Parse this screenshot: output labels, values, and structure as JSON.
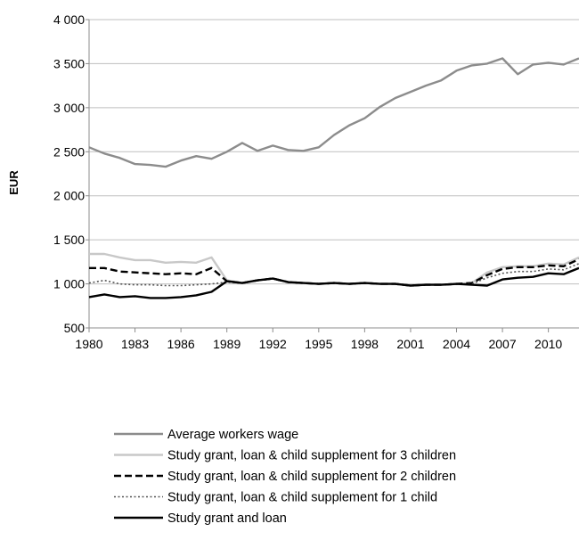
{
  "chart_data": {
    "type": "line",
    "title": "",
    "xlabel": "",
    "ylabel": "EUR",
    "xlim": [
      1980,
      2012
    ],
    "ylim": [
      500,
      4000
    ],
    "x_ticks": [
      "1980",
      "1983",
      "1986",
      "1989",
      "1992",
      "1995",
      "1998",
      "2001",
      "2004",
      "2007",
      "2010"
    ],
    "y_ticks": [
      "500",
      "1 000",
      "1 500",
      "2 000",
      "2 500",
      "3 000",
      "3 500",
      "4 000"
    ],
    "grid": "horizontal",
    "legend_position": "bottom",
    "x": [
      1980,
      1981,
      1982,
      1983,
      1984,
      1985,
      1986,
      1987,
      1988,
      1989,
      1990,
      1991,
      1992,
      1993,
      1994,
      1995,
      1996,
      1997,
      1998,
      1999,
      2000,
      2001,
      2002,
      2003,
      2004,
      2005,
      2006,
      2007,
      2008,
      2009,
      2010,
      2011,
      2012
    ],
    "series": [
      {
        "name": "Average workers wage",
        "color": "#8c8c8c",
        "style": "solid",
        "values": [
          2550,
          2480,
          2430,
          2360,
          2350,
          2330,
          2400,
          2450,
          2420,
          2500,
          2600,
          2510,
          2570,
          2520,
          2510,
          2550,
          2690,
          2800,
          2880,
          3010,
          3110,
          3180,
          3250,
          3310,
          3420,
          3480,
          3500,
          3560,
          3380,
          3490,
          3510,
          3490,
          3560
        ]
      },
      {
        "name": "Study grant, loan & child supplement for 3 children",
        "color": "#c8c8c8",
        "style": "solid",
        "values": [
          1340,
          1340,
          1300,
          1270,
          1270,
          1240,
          1250,
          1240,
          1300,
          1040,
          1010,
          1040,
          1060,
          1020,
          1010,
          1000,
          1010,
          1000,
          1010,
          1000,
          1000,
          980,
          990,
          990,
          1000,
          1010,
          1130,
          1190,
          1200,
          1200,
          1230,
          1220,
          1300
        ]
      },
      {
        "name": "Study grant, loan & child supplement for 2 children",
        "color": "#000000",
        "style": "dashed",
        "values": [
          1180,
          1180,
          1140,
          1130,
          1120,
          1110,
          1120,
          1110,
          1180,
          1030,
          1010,
          1040,
          1060,
          1020,
          1010,
          1000,
          1010,
          1000,
          1010,
          1000,
          1000,
          980,
          990,
          990,
          1000,
          1010,
          1100,
          1170,
          1190,
          1190,
          1210,
          1200,
          1280
        ]
      },
      {
        "name": "Study grant, loan & child supplement for 1 child",
        "color": "#555555",
        "style": "dotted",
        "values": [
          1010,
          1040,
          1000,
          990,
          990,
          980,
          980,
          990,
          1000,
          1020,
          1010,
          1040,
          1060,
          1020,
          1010,
          1000,
          1010,
          1000,
          1010,
          1000,
          1000,
          980,
          990,
          990,
          1000,
          1000,
          1070,
          1120,
          1140,
          1140,
          1170,
          1160,
          1230
        ]
      },
      {
        "name": "Study grant and loan",
        "color": "#000000",
        "style": "solid",
        "values": [
          850,
          880,
          850,
          860,
          840,
          840,
          850,
          870,
          910,
          1030,
          1010,
          1040,
          1060,
          1020,
          1010,
          1000,
          1010,
          1000,
          1010,
          1000,
          1000,
          980,
          990,
          990,
          1000,
          990,
          980,
          1050,
          1070,
          1080,
          1120,
          1110,
          1180
        ]
      }
    ]
  }
}
